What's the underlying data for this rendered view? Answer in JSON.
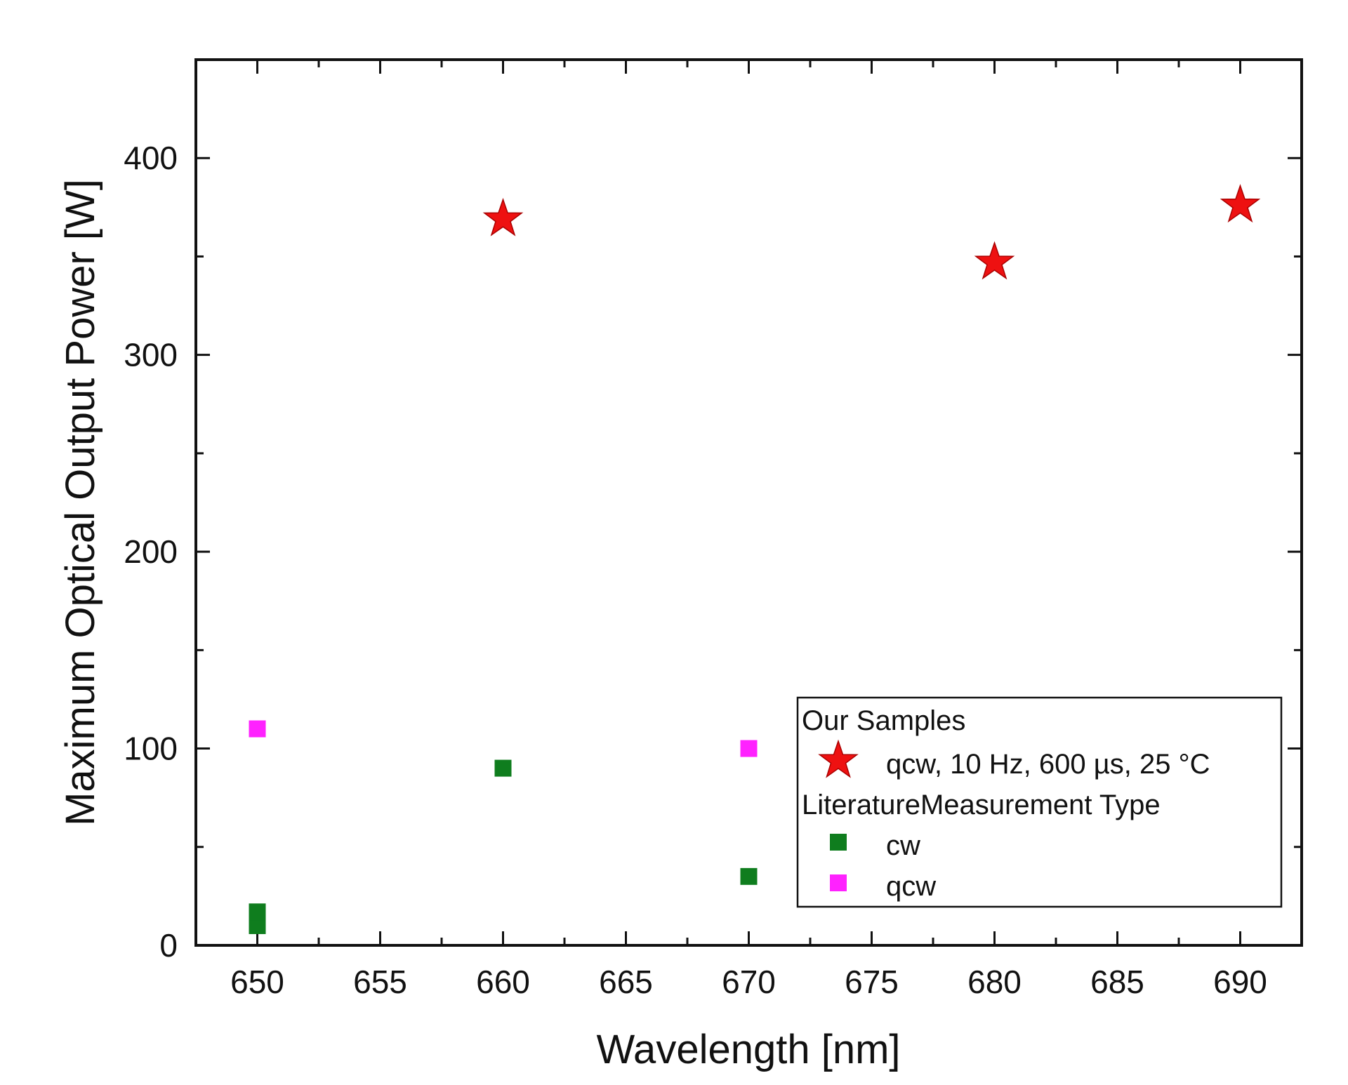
{
  "chart_data": {
    "type": "scatter",
    "xlabel": "Wavelength [nm]",
    "ylabel": "Maximum Optical Output Power [W]",
    "xlim": [
      647.5,
      692.5
    ],
    "ylim": [
      0,
      450
    ],
    "x_ticks": [
      650,
      655,
      660,
      665,
      670,
      675,
      680,
      685,
      690
    ],
    "y_ticks": [
      0,
      100,
      200,
      300,
      400
    ],
    "series": [
      {
        "name": "qcw, 10 Hz, 600 µs, 25 °C",
        "marker": "star",
        "color": "#ee1111",
        "points": [
          {
            "x": 660,
            "y": 369
          },
          {
            "x": 680,
            "y": 347
          },
          {
            "x": 690,
            "y": 376
          }
        ]
      },
      {
        "name": "cw",
        "marker": "square",
        "color": "#0f7d1e",
        "points": [
          {
            "x": 650,
            "y": 10
          },
          {
            "x": 650,
            "y": 17
          },
          {
            "x": 660,
            "y": 90
          },
          {
            "x": 670,
            "y": 35
          }
        ]
      },
      {
        "name": "qcw",
        "marker": "square",
        "color": "#ff22ff",
        "points": [
          {
            "x": 650,
            "y": 110
          },
          {
            "x": 670,
            "y": 100
          }
        ]
      }
    ],
    "legend": {
      "placement": "bottom-right",
      "group1_title": "Our Samples",
      "group2_title": "LiteratureMeasurement Type",
      "entries": [
        {
          "series": 0,
          "label": "qcw, 10 Hz, 600 µs, 25 °C"
        },
        {
          "series": 1,
          "label": "cw"
        },
        {
          "series": 2,
          "label": "qcw"
        }
      ]
    }
  }
}
